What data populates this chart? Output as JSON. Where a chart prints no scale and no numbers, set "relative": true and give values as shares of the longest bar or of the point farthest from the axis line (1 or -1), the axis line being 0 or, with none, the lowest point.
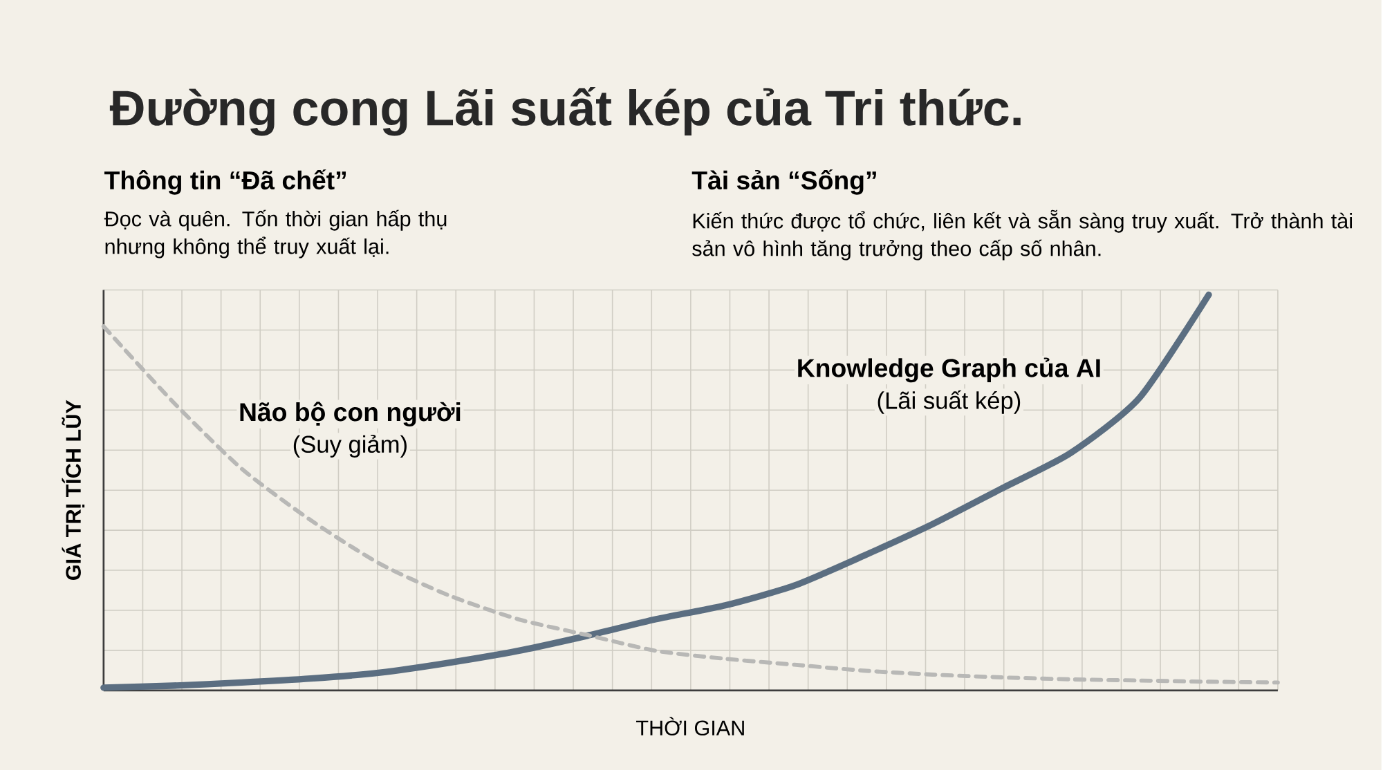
{
  "chart_data": {
    "type": "line",
    "relative": true,
    "grid": true,
    "legend": false,
    "title": "Đường cong Lãi suất kép của Tri thức.",
    "xlabel": "THỜI GIAN",
    "ylabel": "GIÁ TRỊ TÍCH LŨY",
    "categories": [
      null,
      null,
      null,
      null,
      null,
      null,
      null,
      null,
      null,
      null,
      null,
      null,
      null,
      null,
      null,
      null,
      null,
      null
    ],
    "series": [
      {
        "name": "Knowledge Graph của AI",
        "color": "#5b6e81",
        "line_style": "solid",
        "values": [
          0.007,
          0.012,
          0.02,
          0.03,
          0.045,
          0.07,
          0.1,
          0.138,
          0.18,
          0.215,
          0.265,
          0.34,
          0.42,
          0.51,
          0.6,
          0.74,
          1.0,
          null
        ]
      },
      {
        "name": "Não bộ con người",
        "color": "#b8b8b6",
        "line_style": "dashed",
        "values": [
          0.92,
          0.73,
          0.56,
          0.43,
          0.32,
          0.24,
          0.18,
          0.14,
          0.1,
          0.08,
          0.065,
          0.05,
          0.04,
          0.033,
          0.028,
          0.025,
          0.022,
          0.02
        ]
      }
    ],
    "annotations": [
      "Thông tin “Đã chết”",
      "Đọc và quên. Tốn thời gian hấp thụ nhưng không thể truy xuất lại.",
      "Tài sản “Sống”",
      "Kiến thức được tổ chức, liên kết và sẵn sàng truy xuất. Trở thành tài sản vô hình tăng trưởng theo cấp số nhân.",
      "(Lãi suất kép)",
      "(Suy giảm)"
    ]
  }
}
